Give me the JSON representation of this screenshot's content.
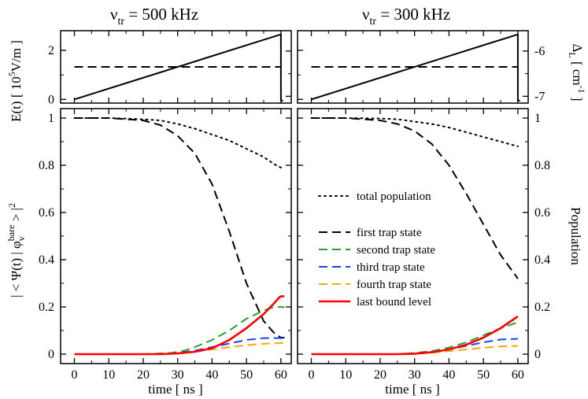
{
  "chart_data": [
    {
      "type": "line",
      "panel": "top-left",
      "title": "ν_tr = 500 kHz",
      "title_main": "ν",
      "title_sub": "tr",
      "title_rest": " = 500 kHz",
      "xlim": [
        -4,
        63
      ],
      "ylim": [
        -0.15,
        2.8
      ],
      "yticks": [
        0,
        2
      ],
      "y2lim": [
        -7.15,
        -5.55
      ],
      "y2ticks": [
        -7,
        -6
      ],
      "series": [
        {
          "name": "E(t)",
          "style": "solid",
          "color": "#000000",
          "axis": "left",
          "x": [
            0,
            60,
            60,
            60.6
          ],
          "y": [
            0,
            2.65,
            -0.05,
            -0.05
          ]
        },
        {
          "name": "Δ_L",
          "style": "dashed",
          "color": "#000000",
          "axis": "right",
          "x": [
            0,
            60
          ],
          "y": [
            -6.35,
            -6.35
          ]
        }
      ]
    },
    {
      "type": "line",
      "panel": "top-right",
      "title": "ν_tr = 300 kHz",
      "title_main": "ν",
      "title_sub": "tr",
      "title_rest": " = 300 kHz",
      "xlim": [
        -4,
        63
      ],
      "ylim": [
        -0.15,
        2.8
      ],
      "yticks": [
        0,
        2
      ],
      "y2lim": [
        -7.15,
        -5.55
      ],
      "y2ticks": [
        -7,
        -6
      ],
      "series": [
        {
          "name": "E(t)",
          "style": "solid",
          "color": "#000000",
          "axis": "left",
          "x": [
            0,
            60,
            60,
            60.6
          ],
          "y": [
            0,
            2.65,
            -0.05,
            -0.05
          ]
        },
        {
          "name": "Δ_L",
          "style": "dashed",
          "color": "#000000",
          "axis": "right",
          "x": [
            0,
            60
          ],
          "y": [
            -6.35,
            -6.35
          ]
        }
      ]
    },
    {
      "type": "line",
      "panel": "bottom-left",
      "xlabel": "time [ ns ]",
      "xlim": [
        -4,
        63
      ],
      "xticks": [
        0,
        10,
        20,
        30,
        40,
        50,
        60
      ],
      "ylim": [
        -0.04,
        1.04
      ],
      "yticks": [
        0,
        0.2,
        0.4,
        0.6,
        0.8,
        1
      ],
      "series": [
        {
          "name": "total population",
          "style": "dotted",
          "color": "#000000",
          "x": [
            0,
            10,
            20,
            25,
            30,
            35,
            40,
            45,
            50,
            55,
            58,
            60
          ],
          "y": [
            1.0,
            1.0,
            0.995,
            0.99,
            0.975,
            0.955,
            0.93,
            0.905,
            0.87,
            0.835,
            0.805,
            0.79
          ]
        },
        {
          "name": "first trap state",
          "style": "dashed",
          "color": "#000000",
          "x": [
            0,
            10,
            15,
            20,
            25,
            30,
            35,
            40,
            45,
            50,
            55,
            58,
            60,
            61
          ],
          "y": [
            1.0,
            1.0,
            0.995,
            0.99,
            0.97,
            0.925,
            0.85,
            0.72,
            0.52,
            0.3,
            0.14,
            0.09,
            0.07,
            0.07
          ]
        },
        {
          "name": "second trap state",
          "style": "dashed",
          "color": "#2ca02c",
          "x": [
            0,
            20,
            28,
            32,
            35,
            40,
            45,
            50,
            55,
            58,
            60,
            61
          ],
          "y": [
            0,
            0,
            0.005,
            0.015,
            0.03,
            0.06,
            0.1,
            0.15,
            0.185,
            0.2,
            0.2,
            0.198
          ]
        },
        {
          "name": "third trap state",
          "style": "dashed",
          "color": "#1f3fff",
          "x": [
            0,
            25,
            30,
            35,
            40,
            45,
            50,
            55,
            60,
            61
          ],
          "y": [
            0,
            0,
            0.005,
            0.015,
            0.03,
            0.045,
            0.06,
            0.068,
            0.068,
            0.065
          ]
        },
        {
          "name": "fourth trap state",
          "style": "dashed",
          "color": "#ffa500",
          "x": [
            0,
            25,
            30,
            35,
            40,
            45,
            50,
            55,
            60,
            61
          ],
          "y": [
            0,
            0,
            0.003,
            0.01,
            0.02,
            0.03,
            0.038,
            0.044,
            0.047,
            0.047
          ]
        },
        {
          "name": "last bound level",
          "style": "solid",
          "color": "#ff0000",
          "x": [
            0,
            25,
            30,
            35,
            40,
            45,
            50,
            55,
            58,
            59.5,
            60,
            61
          ],
          "y": [
            0,
            0,
            0.003,
            0.01,
            0.025,
            0.06,
            0.11,
            0.17,
            0.215,
            0.24,
            0.245,
            0.245
          ]
        }
      ]
    },
    {
      "type": "line",
      "panel": "bottom-right",
      "xlabel": "time [ ns ]",
      "xlim": [
        -4,
        63
      ],
      "xticks": [
        0,
        10,
        20,
        30,
        40,
        50,
        60
      ],
      "ylim": [
        -0.04,
        1.04
      ],
      "yticks": [
        0,
        0.2,
        0.4,
        0.6,
        0.8,
        1
      ],
      "series": [
        {
          "name": "total population",
          "style": "dotted",
          "color": "#000000",
          "x": [
            0,
            10,
            20,
            25,
            30,
            35,
            40,
            45,
            50,
            55,
            60
          ],
          "y": [
            1.0,
            1.0,
            0.998,
            0.995,
            0.985,
            0.975,
            0.96,
            0.94,
            0.92,
            0.9,
            0.88
          ]
        },
        {
          "name": "first trap state",
          "style": "dashed",
          "color": "#000000",
          "x": [
            0,
            10,
            15,
            20,
            25,
            30,
            35,
            40,
            45,
            50,
            55,
            60
          ],
          "y": [
            1.0,
            1.0,
            0.995,
            0.99,
            0.975,
            0.945,
            0.89,
            0.8,
            0.68,
            0.55,
            0.42,
            0.32
          ]
        },
        {
          "name": "second trap state",
          "style": "dashed",
          "color": "#2ca02c",
          "x": [
            0,
            25,
            30,
            35,
            40,
            45,
            50,
            55,
            60
          ],
          "y": [
            0,
            0,
            0.005,
            0.013,
            0.028,
            0.05,
            0.08,
            0.11,
            0.135
          ]
        },
        {
          "name": "third trap state",
          "style": "dashed",
          "color": "#1f3fff",
          "x": [
            0,
            25,
            30,
            35,
            40,
            45,
            50,
            55,
            60
          ],
          "y": [
            0,
            0,
            0.003,
            0.01,
            0.02,
            0.035,
            0.05,
            0.062,
            0.065
          ]
        },
        {
          "name": "fourth trap state",
          "style": "dashed",
          "color": "#ffa500",
          "x": [
            0,
            25,
            30,
            35,
            40,
            45,
            50,
            55,
            60
          ],
          "y": [
            0,
            0,
            0.002,
            0.006,
            0.013,
            0.02,
            0.027,
            0.033,
            0.035
          ]
        },
        {
          "name": "last bound level",
          "style": "solid",
          "color": "#ff0000",
          "x": [
            0,
            25,
            30,
            35,
            40,
            45,
            50,
            55,
            58,
            59.5,
            60
          ],
          "y": [
            0,
            0,
            0.002,
            0.008,
            0.02,
            0.04,
            0.07,
            0.11,
            0.14,
            0.155,
            0.16
          ]
        }
      ]
    }
  ],
  "labels": {
    "left_top_axis": "E(t) [ 10⁵V/m ]",
    "left_top_main": "E(t) [ 10",
    "left_top_sup": "5",
    "left_top_rest": "V/m ]",
    "left_bottom_axis": "|< Ψ(t) | φᵥ^bare >|²",
    "left_bottom_pre": "| < Ψ(t) | φ",
    "left_bottom_sub": "v",
    "left_bottom_sup": "bare",
    "left_bottom_post": " > |",
    "left_bottom_sq": "2",
    "right_top_axis": "Δ_L [ cm⁻¹ ]",
    "right_top_main": "Δ",
    "right_top_sub": "L",
    "right_top_rest": " [ cm",
    "right_top_sup": "-1",
    "right_top_end": " ]",
    "right_bottom_axis": "Population"
  },
  "legend": [
    {
      "label": "total population",
      "style": "dotted",
      "color": "#000000"
    },
    {
      "label": "first trap state",
      "style": "dashed",
      "color": "#000000"
    },
    {
      "label": "second trap state",
      "style": "dashed",
      "color": "#2ca02c"
    },
    {
      "label": "third trap state",
      "style": "dashed",
      "color": "#1f3fff"
    },
    {
      "label": "fourth trap state",
      "style": "dashed",
      "color": "#ffa500"
    },
    {
      "label": "last bound level",
      "style": "solid",
      "color": "#ff0000"
    }
  ]
}
